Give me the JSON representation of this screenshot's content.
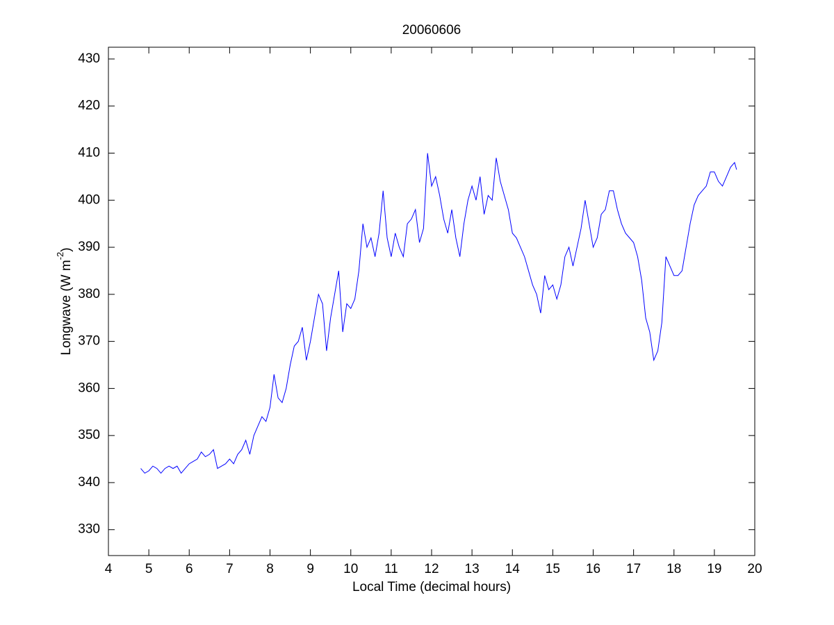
{
  "chart_data": {
    "type": "line",
    "title": "20060606",
    "x_label": "Local Time (decimal hours)",
    "y_label": {
      "text": "Longwave (W m",
      "superscript": "-2",
      "close": ")"
    },
    "xlim": [
      4,
      20
    ],
    "ylim": [
      324.5,
      432.5
    ],
    "xticks": [
      4,
      5,
      6,
      7,
      8,
      9,
      10,
      11,
      12,
      13,
      14,
      15,
      16,
      17,
      18,
      19,
      20
    ],
    "yticks": [
      330,
      340,
      350,
      360,
      370,
      380,
      390,
      400,
      410,
      420,
      430
    ],
    "grid": false,
    "color": "#0000ff",
    "x": [
      4.8,
      4.9,
      5.0,
      5.1,
      5.2,
      5.3,
      5.4,
      5.5,
      5.6,
      5.7,
      5.8,
      5.9,
      6.0,
      6.1,
      6.2,
      6.3,
      6.4,
      6.5,
      6.6,
      6.7,
      6.8,
      6.9,
      7.0,
      7.1,
      7.2,
      7.3,
      7.4,
      7.5,
      7.6,
      7.7,
      7.8,
      7.9,
      8.0,
      8.1,
      8.2,
      8.3,
      8.4,
      8.5,
      8.6,
      8.7,
      8.8,
      8.9,
      9.0,
      9.1,
      9.2,
      9.3,
      9.4,
      9.5,
      9.6,
      9.7,
      9.8,
      9.9,
      10.0,
      10.1,
      10.2,
      10.3,
      10.4,
      10.5,
      10.6,
      10.7,
      10.8,
      10.9,
      11.0,
      11.1,
      11.2,
      11.3,
      11.4,
      11.5,
      11.6,
      11.7,
      11.8,
      11.9,
      12.0,
      12.1,
      12.2,
      12.3,
      12.4,
      12.5,
      12.6,
      12.7,
      12.8,
      12.9,
      13.0,
      13.1,
      13.2,
      13.3,
      13.4,
      13.5,
      13.6,
      13.7,
      13.8,
      13.9,
      14.0,
      14.1,
      14.2,
      14.3,
      14.4,
      14.5,
      14.6,
      14.7,
      14.8,
      14.9,
      15.0,
      15.1,
      15.2,
      15.3,
      15.4,
      15.5,
      15.6,
      15.7,
      15.8,
      15.9,
      16.0,
      16.1,
      16.2,
      16.3,
      16.4,
      16.5,
      16.6,
      16.7,
      16.8,
      16.9,
      17.0,
      17.1,
      17.2,
      17.3,
      17.4,
      17.5,
      17.6,
      17.7,
      17.8,
      17.9,
      18.0,
      18.1,
      18.2,
      18.3,
      18.4,
      18.5,
      18.6,
      18.7,
      18.8,
      18.9,
      19.0,
      19.1,
      19.2,
      19.3,
      19.4,
      19.5,
      19.55
    ],
    "values": [
      343,
      342,
      342.5,
      343.5,
      343,
      342,
      343,
      343.5,
      343,
      343.5,
      342,
      343,
      344,
      344.5,
      345,
      346.5,
      345.5,
      346,
      347,
      343,
      343.5,
      344,
      345,
      344,
      346,
      347,
      349,
      346,
      350,
      352,
      354,
      353,
      356,
      363,
      358,
      357,
      360,
      365,
      369,
      370,
      373,
      366,
      370,
      375,
      380,
      378,
      368,
      375,
      380,
      385,
      372,
      378,
      377,
      379,
      385,
      395,
      390,
      392,
      388,
      393,
      402,
      392,
      388,
      393,
      390,
      388,
      395,
      396,
      398,
      391,
      394,
      410,
      403,
      405,
      401,
      396,
      393,
      398,
      392,
      388,
      395,
      400,
      403,
      400,
      405,
      397,
      401,
      400,
      409,
      404,
      401,
      398,
      393,
      392,
      390,
      388,
      385,
      382,
      380,
      376,
      384,
      381,
      382,
      379,
      382,
      388,
      390,
      386,
      390,
      394,
      400,
      395,
      390,
      392,
      397,
      398,
      402,
      402,
      398,
      395,
      393,
      392,
      391,
      388,
      383,
      375,
      372,
      366,
      368,
      374,
      388,
      386,
      384,
      384,
      385,
      390,
      395,
      399,
      401,
      402,
      403,
      406,
      406,
      404,
      403,
      405,
      407,
      408,
      406.5
    ]
  }
}
